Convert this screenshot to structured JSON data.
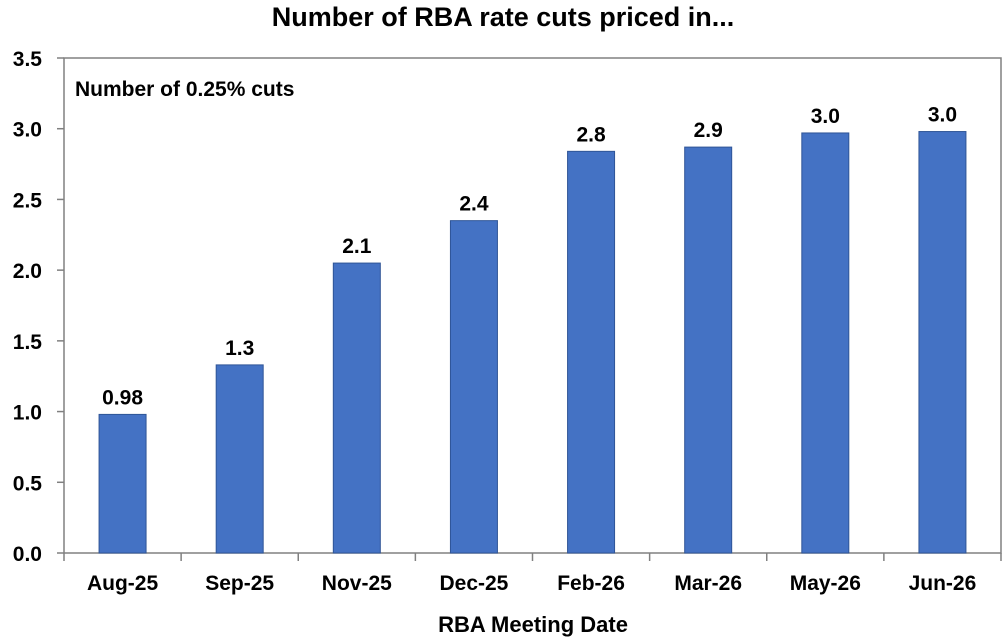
{
  "chart_data": {
    "type": "bar",
    "title": "Number of RBA rate cuts priced in...",
    "xlabel": "RBA Meeting Date",
    "ylabel": "",
    "annotation": "Number of 0.25% cuts",
    "categories": [
      "Aug-25",
      "Sep-25",
      "Nov-25",
      "Dec-25",
      "Feb-26",
      "Mar-26",
      "May-26",
      "Jun-26"
    ],
    "values": [
      0.98,
      1.33,
      2.05,
      2.35,
      2.84,
      2.87,
      2.97,
      2.98
    ],
    "data_labels": [
      "0.98",
      "1.3",
      "2.1",
      "2.4",
      "2.8",
      "2.9",
      "3.0",
      "3.0"
    ],
    "ylim": [
      0,
      3.5
    ],
    "yticks": [
      0.0,
      0.5,
      1.0,
      1.5,
      2.0,
      2.5,
      3.0,
      3.5
    ],
    "ytick_labels": [
      "0.0",
      "0.5",
      "1.0",
      "1.5",
      "2.0",
      "2.5",
      "3.0",
      "3.5"
    ],
    "grid": false,
    "legend": "none",
    "bar_color": "#4472C4",
    "bar_edge_color": "#2F5597",
    "axis_color": "#808080"
  }
}
